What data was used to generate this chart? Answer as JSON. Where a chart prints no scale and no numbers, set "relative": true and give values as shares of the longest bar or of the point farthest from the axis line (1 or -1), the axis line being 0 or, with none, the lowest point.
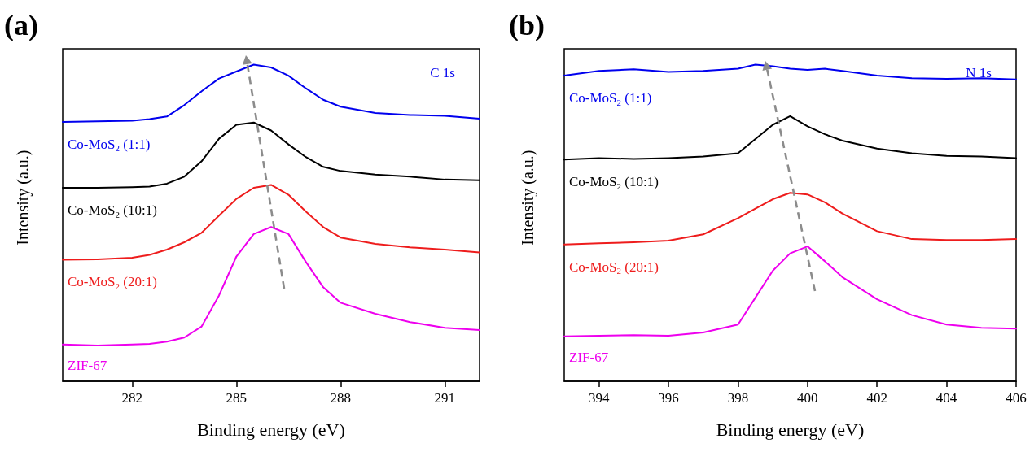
{
  "chart_data": [
    {
      "type": "line",
      "title": "(a)",
      "xlabel": "Binding energy (eV)",
      "ylabel": "Intensity (a.u.)",
      "annotations": [
        "C 1s"
      ],
      "relative": true,
      "xlim": [
        280,
        292
      ],
      "xticks": [
        282,
        285,
        288,
        291
      ],
      "legend": false,
      "grid": false,
      "marker": "none",
      "line_style": "solid",
      "x": [
        280,
        281,
        282,
        282.5,
        283,
        283.5,
        284,
        284.5,
        285,
        285.5,
        286,
        286.5,
        287,
        287.5,
        288,
        289,
        290,
        291,
        292
      ],
      "series": [
        {
          "name": "Co-MoS$_{2}$ (1:1)",
          "color": "#0000ee",
          "values": [
            0.819,
            0.821,
            0.823,
            0.828,
            0.836,
            0.872,
            0.916,
            0.956,
            0.978,
            1,
            0.991,
            0.965,
            0.925,
            0.889,
            0.867,
            0.847,
            0.841,
            0.838,
            0.829
          ]
        },
        {
          "name": "Co-MoS$_{2}$ (10:1)",
          "color": "#000000",
          "values": [
            0.611,
            0.611,
            0.613,
            0.615,
            0.624,
            0.646,
            0.695,
            0.766,
            0.81,
            0.817,
            0.792,
            0.748,
            0.708,
            0.677,
            0.664,
            0.653,
            0.646,
            0.637,
            0.635
          ]
        },
        {
          "name": "Co-MoS$_{2}$ (20:1)",
          "color": "#ee1c1c",
          "values": [
            0.384,
            0.385,
            0.39,
            0.399,
            0.416,
            0.439,
            0.469,
            0.523,
            0.576,
            0.611,
            0.62,
            0.589,
            0.536,
            0.487,
            0.454,
            0.434,
            0.423,
            0.416,
            0.407
          ]
        },
        {
          "name": "ZIF-67",
          "color": "#ee00ee",
          "values": [
            0.116,
            0.113,
            0.116,
            0.118,
            0.125,
            0.138,
            0.173,
            0.271,
            0.394,
            0.465,
            0.487,
            0.465,
            0.377,
            0.297,
            0.248,
            0.213,
            0.187,
            0.169,
            0.162
          ]
        }
      ]
    },
    {
      "type": "line",
      "title": "(b)",
      "xlabel": "Binding energy (eV)",
      "ylabel": "Intensity (a.u.)",
      "annotations": [
        "N 1s"
      ],
      "relative": true,
      "xlim": [
        393,
        406
      ],
      "xticks": [
        394,
        396,
        398,
        400,
        402,
        404,
        406
      ],
      "legend": false,
      "grid": false,
      "marker": "none",
      "line_style": "solid",
      "x": [
        393,
        394,
        395,
        396,
        397,
        398,
        398.5,
        399,
        399.5,
        400,
        400.5,
        401,
        402,
        403,
        404,
        405,
        406
      ],
      "series": [
        {
          "name": "Co-MoS$_{2}$ (1:1)",
          "color": "#0000ee",
          "values": [
            0.965,
            0.98,
            0.985,
            0.977,
            0.98,
            0.987,
            1,
            0.995,
            0.987,
            0.983,
            0.987,
            0.98,
            0.965,
            0.957,
            0.955,
            0.957,
            0.953
          ]
        },
        {
          "name": "Co-MoS$_{2}$ (10:1)",
          "color": "#000000",
          "values": [
            0.7,
            0.705,
            0.702,
            0.705,
            0.71,
            0.72,
            0.765,
            0.81,
            0.837,
            0.805,
            0.78,
            0.76,
            0.735,
            0.72,
            0.712,
            0.71,
            0.705
          ]
        },
        {
          "name": "Co-MoS$_{2}$ (20:1)",
          "color": "#ee1c1c",
          "values": [
            0.432,
            0.436,
            0.439,
            0.444,
            0.464,
            0.515,
            0.545,
            0.575,
            0.595,
            0.59,
            0.565,
            0.53,
            0.474,
            0.449,
            0.446,
            0.446,
            0.449
          ]
        },
        {
          "name": "ZIF-67",
          "color": "#ee00ee",
          "values": [
            0.142,
            0.144,
            0.146,
            0.144,
            0.154,
            0.179,
            0.264,
            0.349,
            0.404,
            0.426,
            0.379,
            0.329,
            0.259,
            0.209,
            0.179,
            0.169,
            0.166
          ]
        }
      ]
    }
  ]
}
